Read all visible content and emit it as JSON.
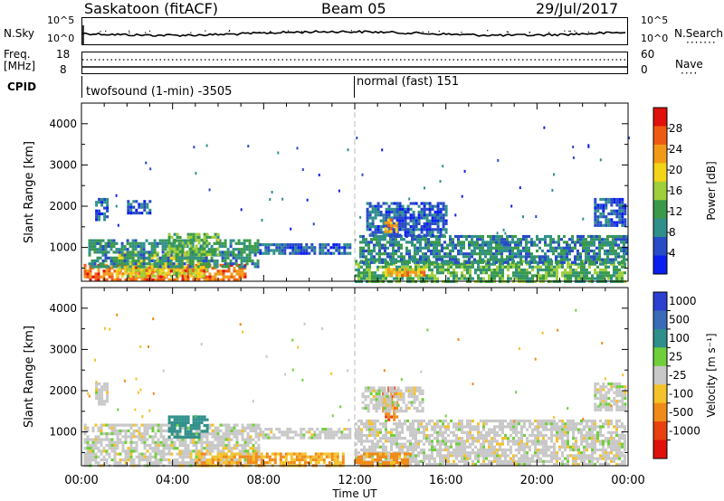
{
  "header": {
    "radar": "Saskatoon (fitACF)",
    "beam": "Beam 05",
    "date": "29/Jul/2017"
  },
  "top_strip": {
    "nsky_label": "N.Sky",
    "nsky_ticks": [
      "10^5",
      "10^0"
    ],
    "nsearch_label": "N.Search",
    "nsearch_ticks": [
      "10^5",
      "10^0"
    ],
    "freq_label": "Freq.",
    "freq_unit": "[MHz]",
    "freq_ticks": [
      "18",
      "8"
    ],
    "nave_label": "Nave",
    "nave_ticks": [
      "60",
      "0"
    ],
    "cpid_label": "CPID",
    "cpid_segments": [
      {
        "label": "twofsound (1-min) -3505",
        "start": "00:00"
      },
      {
        "label": "normal (fast) 151",
        "start": "12:00"
      }
    ]
  },
  "colors": {
    "dashed_line": "#bbbbbb",
    "ground_gray": "#c8c8c8"
  },
  "chart_data": [
    {
      "type": "heatmap",
      "name": "power",
      "xlabel": "Time UT",
      "ylabel": "Slant Range [km]",
      "x_ticks": [
        "00:00",
        "04:00",
        "08:00",
        "12:00",
        "16:00",
        "20:00",
        "00:00"
      ],
      "y_ticks": [
        1000,
        2000,
        3000,
        4000
      ],
      "ylim": [
        180,
        4500
      ],
      "xlim_hours": [
        0,
        24
      ],
      "colorbar": {
        "title": "Power [dB]",
        "ticks": [
          4,
          8,
          12,
          16,
          20,
          24,
          28
        ],
        "range": [
          0,
          32
        ],
        "colors": [
          "#0a1ef0",
          "#284bc8",
          "#2f8f8a",
          "#3a9a4a",
          "#9fcf3a",
          "#f2d41a",
          "#f29a18",
          "#ef5a12",
          "#e0100c"
        ]
      },
      "regions": [
        {
          "t0": 0.1,
          "t1": 7.2,
          "r0": 180,
          "r1": 600,
          "level": 26
        },
        {
          "t0": 1.5,
          "t1": 5.5,
          "r0": 300,
          "r1": 900,
          "level": 18
        },
        {
          "t0": 0.3,
          "t1": 7.8,
          "r0": 550,
          "r1": 1200,
          "level": 10
        },
        {
          "t0": 3.8,
          "t1": 6.0,
          "r0": 800,
          "r1": 1350,
          "level": 14
        },
        {
          "t0": 7.8,
          "t1": 11.8,
          "r0": 850,
          "r1": 1100,
          "level": 6
        },
        {
          "t0": 0.6,
          "t1": 1.1,
          "r0": 1700,
          "r1": 2200,
          "level": 6
        },
        {
          "t0": 2.0,
          "t1": 3.0,
          "r0": 1800,
          "r1": 2150,
          "level": 6
        },
        {
          "t0": 12.0,
          "t1": 23.9,
          "r0": 180,
          "r1": 700,
          "level": 13
        },
        {
          "t0": 13.2,
          "t1": 15.0,
          "r0": 300,
          "r1": 500,
          "level": 22
        },
        {
          "t0": 12.2,
          "t1": 23.9,
          "r0": 650,
          "r1": 1300,
          "level": 9
        },
        {
          "t0": 12.5,
          "t1": 16.0,
          "r0": 1300,
          "r1": 2100,
          "level": 6
        },
        {
          "t0": 13.3,
          "t1": 13.8,
          "r0": 1400,
          "r1": 1700,
          "level": 22
        },
        {
          "t0": 22.5,
          "t1": 23.9,
          "r0": 1500,
          "r1": 2200,
          "level": 6
        }
      ]
    },
    {
      "type": "heatmap",
      "name": "velocity",
      "xlabel": "Time UT",
      "ylabel": "Slant Range [km]",
      "x_ticks": [
        "00:00",
        "04:00",
        "08:00",
        "12:00",
        "16:00",
        "20:00",
        "00:00"
      ],
      "y_ticks": [
        1000,
        2000,
        3000,
        4000
      ],
      "ylim": [
        180,
        4500
      ],
      "xlim_hours": [
        0,
        24
      ],
      "colorbar": {
        "title": "Velocity [m s⁻¹]",
        "ticks": [
          "1000",
          "500",
          "100",
          "25",
          "-25",
          "-100",
          "-500",
          "-1000"
        ],
        "colors": [
          "#2b3fd0",
          "#3a6ab8",
          "#2f8f8a",
          "#6fcf3a",
          "#c8c8c8",
          "#f4c22a",
          "#f08a18",
          "#e8400e",
          "#e0100c"
        ]
      },
      "regions": [
        {
          "t0": 0.1,
          "t1": 7.8,
          "r0": 180,
          "r1": 1200,
          "v": 0
        },
        {
          "t0": 3.8,
          "t1": 5.5,
          "r0": 900,
          "r1": 1400,
          "v": 150
        },
        {
          "t0": 5.0,
          "t1": 11.5,
          "r0": 180,
          "r1": 500,
          "v": -60
        },
        {
          "t0": 7.8,
          "t1": 11.8,
          "r0": 850,
          "r1": 1100,
          "v": 0
        },
        {
          "t0": 0.6,
          "t1": 1.1,
          "r0": 1700,
          "r1": 2200,
          "v": 0
        },
        {
          "t0": 12.0,
          "t1": 23.9,
          "r0": 180,
          "r1": 1300,
          "v": 0
        },
        {
          "t0": 12.0,
          "t1": 14.5,
          "r0": 180,
          "r1": 500,
          "v": -80
        },
        {
          "t0": 13.2,
          "t1": 13.9,
          "r0": 1300,
          "r1": 2100,
          "v": -300
        },
        {
          "t0": 12.3,
          "t1": 15.0,
          "r0": 1500,
          "r1": 2100,
          "v": 0
        },
        {
          "t0": 22.5,
          "t1": 23.9,
          "r0": 1500,
          "r1": 2200,
          "v": 0
        }
      ]
    }
  ]
}
